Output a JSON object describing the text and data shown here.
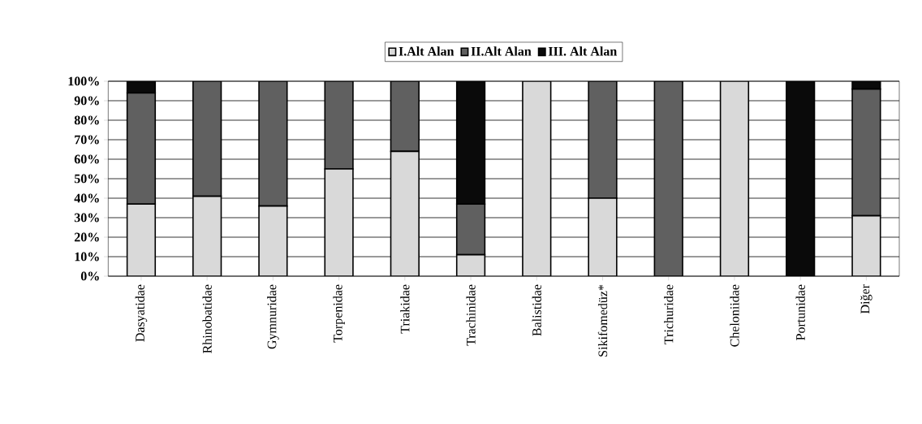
{
  "chart_data": {
    "type": "bar",
    "stacked": true,
    "categories": [
      "Dasyatidae",
      "Rhinobatidae",
      "Gymnuridae",
      "Torpenidae",
      "Triakidae",
      "Trachinidae",
      "Balistidae",
      "Sikifomedüz*",
      "Trichuridae",
      "Cheloniidae",
      "Portunidae",
      "Diğer"
    ],
    "series": [
      {
        "name": "I.Alt Alan",
        "color": "#d9d9d9",
        "values": [
          37,
          41,
          36,
          55,
          64,
          11,
          100,
          40,
          0,
          100,
          0,
          31
        ]
      },
      {
        "name": "II.Alt Alan",
        "color": "#606060",
        "values": [
          57,
          59,
          64,
          45,
          36,
          26,
          0,
          60,
          100,
          0,
          0,
          65
        ]
      },
      {
        "name": "III. Alt Alan",
        "color": "#0a0a0a",
        "values": [
          6,
          0,
          0,
          0,
          0,
          63,
          0,
          0,
          0,
          0,
          100,
          4
        ]
      }
    ],
    "ylim": [
      0,
      100
    ],
    "yticks": [
      {
        "value": 0,
        "label": "0%"
      },
      {
        "value": 10,
        "label": "10%"
      },
      {
        "value": 20,
        "label": "20%"
      },
      {
        "value": 30,
        "label": "30%"
      },
      {
        "value": 40,
        "label": "40%"
      },
      {
        "value": 50,
        "label": "50%"
      },
      {
        "value": 60,
        "label": "60%"
      },
      {
        "value": 70,
        "label": "70%"
      },
      {
        "value": 80,
        "label": "80%"
      },
      {
        "value": 90,
        "label": "90%"
      },
      {
        "value": 100,
        "label": "100%"
      }
    ],
    "grid": "y",
    "legend": "top"
  }
}
